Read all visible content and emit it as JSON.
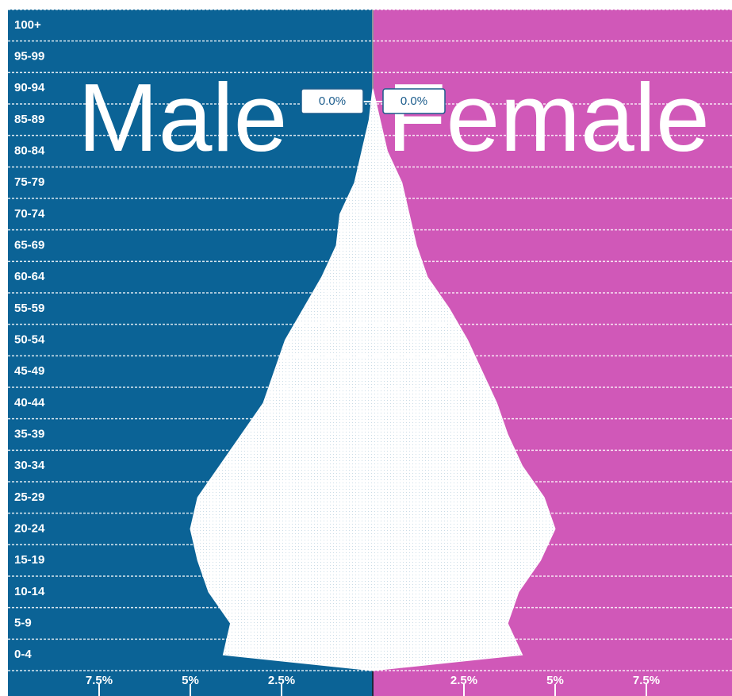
{
  "chart_data": {
    "type": "pyramid",
    "categories": [
      "0-4",
      "5-9",
      "10-14",
      "15-19",
      "20-24",
      "25-29",
      "30-34",
      "35-39",
      "40-44",
      "45-49",
      "50-54",
      "55-59",
      "60-64",
      "65-69",
      "70-74",
      "75-79",
      "80-84",
      "85-89",
      "90-94",
      "95-99",
      "100+"
    ],
    "series": [
      {
        "name": "Male",
        "color": "#0b6396",
        "values": [
          4.1,
          3.9,
          4.5,
          4.8,
          5.0,
          4.8,
          4.2,
          3.6,
          3.0,
          2.7,
          2.4,
          1.9,
          1.4,
          1.0,
          0.9,
          0.5,
          0.3,
          0.1,
          0.0,
          0.0,
          0.0
        ]
      },
      {
        "name": "Female",
        "color": "#d058b8",
        "values": [
          4.1,
          3.7,
          4.0,
          4.6,
          5.0,
          4.7,
          4.1,
          3.7,
          3.4,
          3.0,
          2.6,
          2.1,
          1.5,
          1.2,
          1.0,
          0.8,
          0.4,
          0.2,
          0.0,
          0.0,
          0.0
        ]
      }
    ],
    "area_color": "#ffffff",
    "xlim": [
      0,
      10
    ],
    "xticks_male": [
      {
        "value": 7.5,
        "label": "7.5%"
      },
      {
        "value": 5,
        "label": "5%"
      },
      {
        "value": 2.5,
        "label": "2.5%"
      }
    ],
    "xticks_female": [
      {
        "value": 2.5,
        "label": "2.5%"
      },
      {
        "value": 5,
        "label": "5%"
      },
      {
        "value": 7.5,
        "label": "7.5%"
      }
    ],
    "tooltips": [
      {
        "label": "0.0%",
        "value": 0.0
      },
      {
        "label": "0.0%",
        "value": 0.0
      }
    ]
  }
}
